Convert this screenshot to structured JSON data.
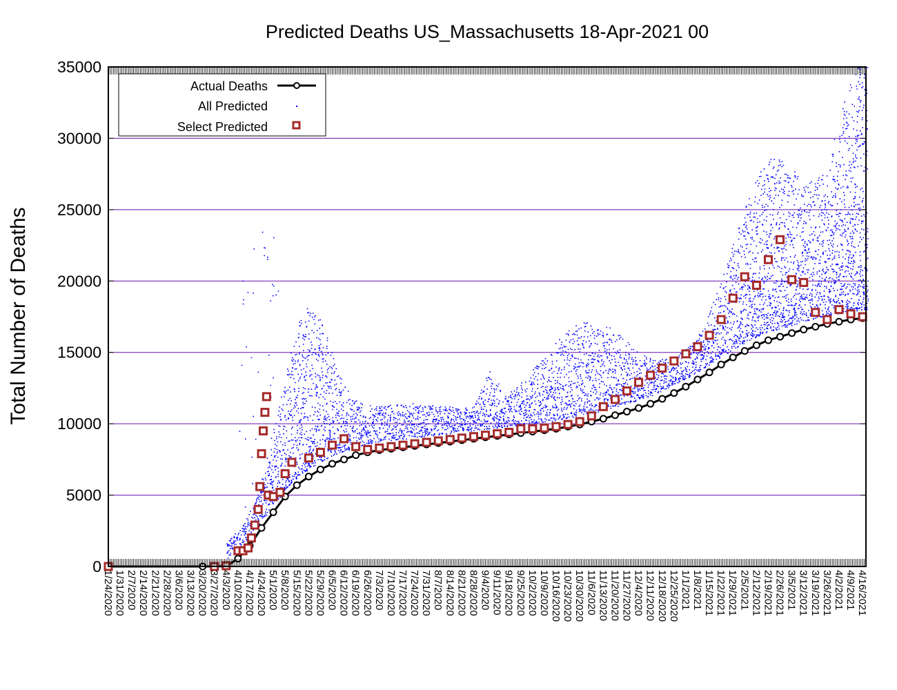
{
  "chart_data": {
    "type": "scatter",
    "title": "Predicted Deaths US_Massachusetts 18-Apr-2021 00",
    "xlabel": "",
    "ylabel": "Total Number of Deaths",
    "x_range": [
      "1/24/2020",
      "4/18/2021"
    ],
    "ylim": [
      0,
      35000
    ],
    "y_ticks": [
      0,
      5000,
      10000,
      15000,
      20000,
      25000,
      30000,
      35000
    ],
    "x_tick_labels": [
      "1/24/2020",
      "1/31/2020",
      "2/7/2020",
      "2/14/2020",
      "2/21/2020",
      "2/28/2020",
      "3/6/2020",
      "3/13/2020",
      "3/20/2020",
      "3/27/2020",
      "4/3/2020",
      "4/10/2020",
      "4/17/2020",
      "4/24/2020",
      "5/1/2020",
      "5/8/2020",
      "5/15/2020",
      "5/22/2020",
      "5/29/2020",
      "6/5/2020",
      "6/12/2020",
      "6/19/2020",
      "6/26/2020",
      "7/3/2020",
      "7/10/2020",
      "7/17/2020",
      "7/24/2020",
      "7/31/2020",
      "8/7/2020",
      "8/14/2020",
      "8/21/2020",
      "8/28/2020",
      "9/4/2020",
      "9/11/2020",
      "9/18/2020",
      "9/25/2020",
      "10/2/2020",
      "10/9/2020",
      "10/16/2020",
      "10/23/2020",
      "10/30/2020",
      "11/6/2020",
      "11/13/2020",
      "11/20/2020",
      "11/27/2020",
      "12/4/2020",
      "12/11/2020",
      "12/18/2020",
      "12/25/2020",
      "1/1/2021",
      "1/8/2021",
      "1/15/2021",
      "1/22/2021",
      "1/29/2021",
      "2/5/2021",
      "2/12/2021",
      "2/19/2021",
      "2/26/2021",
      "3/5/2021",
      "3/12/2021",
      "3/19/2021",
      "3/26/2021",
      "4/2/2021",
      "4/9/2021",
      "4/16/2021"
    ],
    "grid": "horizontal",
    "legend_position": "top-left",
    "series": [
      {
        "name": "Actual Deaths",
        "style": "line-circles",
        "color": "#000000",
        "points": [
          [
            "1/24/2020",
            0
          ],
          [
            "3/20/2020",
            0
          ],
          [
            "4/3/2020",
            20
          ],
          [
            "4/10/2020",
            550
          ],
          [
            "4/17/2020",
            1450
          ],
          [
            "4/24/2020",
            2700
          ],
          [
            "5/1/2020",
            3800
          ],
          [
            "5/8/2020",
            4900
          ],
          [
            "5/15/2020",
            5700
          ],
          [
            "5/22/2020",
            6300
          ],
          [
            "5/29/2020",
            6800
          ],
          [
            "6/5/2020",
            7200
          ],
          [
            "6/12/2020",
            7500
          ],
          [
            "6/19/2020",
            7800
          ],
          [
            "6/26/2020",
            8000
          ],
          [
            "7/3/2020",
            8150
          ],
          [
            "7/10/2020",
            8250
          ],
          [
            "7/17/2020",
            8350
          ],
          [
            "7/24/2020",
            8450
          ],
          [
            "7/31/2020",
            8550
          ],
          [
            "8/7/2020",
            8650
          ],
          [
            "8/14/2020",
            8750
          ],
          [
            "8/21/2020",
            8850
          ],
          [
            "8/28/2020",
            8950
          ],
          [
            "9/4/2020",
            9050
          ],
          [
            "9/11/2020",
            9150
          ],
          [
            "9/18/2020",
            9250
          ],
          [
            "9/25/2020",
            9350
          ],
          [
            "10/2/2020",
            9450
          ],
          [
            "10/9/2020",
            9550
          ],
          [
            "10/16/2020",
            9650
          ],
          [
            "10/23/2020",
            9800
          ],
          [
            "10/30/2020",
            9950
          ],
          [
            "11/6/2020",
            10150
          ],
          [
            "11/13/2020",
            10350
          ],
          [
            "11/20/2020",
            10600
          ],
          [
            "11/27/2020",
            10850
          ],
          [
            "12/4/2020",
            11100
          ],
          [
            "12/11/2020",
            11400
          ],
          [
            "12/18/2020",
            11750
          ],
          [
            "12/25/2020",
            12150
          ],
          [
            "1/1/2021",
            12600
          ],
          [
            "1/8/2021",
            13100
          ],
          [
            "1/15/2021",
            13600
          ],
          [
            "1/22/2021",
            14150
          ],
          [
            "1/29/2021",
            14650
          ],
          [
            "2/5/2021",
            15100
          ],
          [
            "2/12/2021",
            15500
          ],
          [
            "2/19/2021",
            15850
          ],
          [
            "2/26/2021",
            16100
          ],
          [
            "3/5/2021",
            16350
          ],
          [
            "3/12/2021",
            16600
          ],
          [
            "3/19/2021",
            16800
          ],
          [
            "3/26/2021",
            17000
          ],
          [
            "4/2/2021",
            17150
          ],
          [
            "4/9/2021",
            17300
          ],
          [
            "4/16/2021",
            17400
          ]
        ]
      },
      {
        "name": "All Predicted",
        "style": "dots",
        "color": "#0000ff",
        "note_visible": false
      },
      {
        "name": "Select Predicted",
        "style": "open-squares",
        "color": "#a52a2a",
        "points": [
          [
            "1/24/2020",
            0
          ],
          [
            "3/27/2020",
            0
          ],
          [
            "4/3/2020",
            50
          ],
          [
            "4/10/2020",
            1100
          ],
          [
            "4/13/2020",
            1100
          ],
          [
            "4/16/2020",
            1300
          ],
          [
            "4/18/2020",
            2000
          ],
          [
            "4/20/2020",
            2900
          ],
          [
            "4/22/2020",
            4000
          ],
          [
            "4/23/2020",
            5600
          ],
          [
            "4/24/2020",
            7900
          ],
          [
            "4/25/2020",
            9500
          ],
          [
            "4/26/2020",
            10800
          ],
          [
            "4/27/2020",
            11900
          ],
          [
            "4/28/2020",
            5000
          ],
          [
            "5/1/2020",
            4900
          ],
          [
            "5/5/2020",
            5200
          ],
          [
            "5/8/2020",
            6500
          ],
          [
            "5/12/2020",
            7300
          ],
          [
            "5/22/2020",
            7600
          ],
          [
            "5/29/2020",
            8000
          ],
          [
            "6/5/2020",
            8500
          ],
          [
            "6/12/2020",
            8950
          ],
          [
            "6/19/2020",
            8400
          ],
          [
            "6/26/2020",
            8200
          ],
          [
            "7/3/2020",
            8300
          ],
          [
            "7/10/2020",
            8400
          ],
          [
            "7/17/2020",
            8500
          ],
          [
            "7/24/2020",
            8600
          ],
          [
            "7/31/2020",
            8700
          ],
          [
            "8/7/2020",
            8800
          ],
          [
            "8/14/2020",
            8900
          ],
          [
            "8/21/2020",
            9000
          ],
          [
            "8/28/2020",
            9100
          ],
          [
            "9/4/2020",
            9200
          ],
          [
            "9/11/2020",
            9300
          ],
          [
            "9/18/2020",
            9400
          ],
          [
            "9/25/2020",
            9650
          ],
          [
            "10/2/2020",
            9650
          ],
          [
            "10/9/2020",
            9700
          ],
          [
            "10/16/2020",
            9800
          ],
          [
            "10/23/2020",
            9950
          ],
          [
            "10/30/2020",
            10150
          ],
          [
            "11/6/2020",
            10550
          ],
          [
            "11/13/2020",
            11200
          ],
          [
            "11/20/2020",
            11700
          ],
          [
            "11/27/2020",
            12300
          ],
          [
            "12/4/2020",
            12900
          ],
          [
            "12/11/2020",
            13400
          ],
          [
            "12/18/2020",
            13900
          ],
          [
            "12/25/2020",
            14400
          ],
          [
            "1/1/2021",
            14900
          ],
          [
            "1/8/2021",
            15400
          ],
          [
            "1/15/2021",
            16200
          ],
          [
            "1/22/2021",
            17300
          ],
          [
            "1/29/2021",
            18800
          ],
          [
            "2/5/2021",
            20300
          ],
          [
            "2/12/2021",
            19700
          ],
          [
            "2/19/2021",
            21500
          ],
          [
            "2/26/2021",
            22900
          ],
          [
            "3/5/2021",
            20100
          ],
          [
            "3/12/2021",
            19900
          ],
          [
            "3/19/2021",
            17800
          ],
          [
            "3/26/2021",
            17300
          ],
          [
            "4/2/2021",
            18000
          ],
          [
            "4/9/2021",
            17700
          ],
          [
            "4/16/2021",
            17500
          ]
        ]
      }
    ]
  },
  "colors": {
    "actual": "#000000",
    "predicted_dots": "#0000ff",
    "select": "#a52a2a",
    "grid": "#6a0dad"
  }
}
